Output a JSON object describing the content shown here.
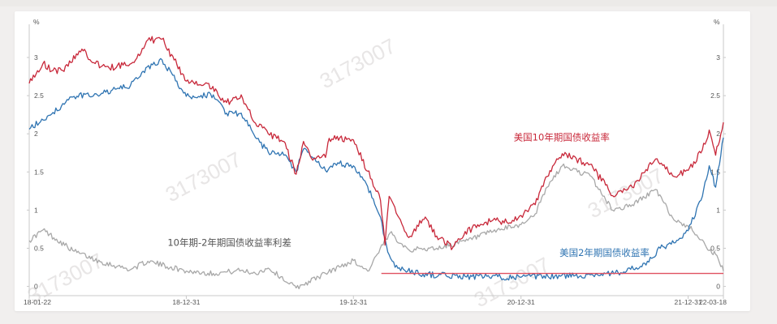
{
  "chart_data": {
    "type": "line",
    "title": "",
    "y_unit_left": "%",
    "y_unit_right": "%",
    "ylim": [
      -0.1,
      3.35
    ],
    "y_ticks": [
      0,
      0.5,
      1,
      1.5,
      2,
      2.5,
      3
    ],
    "y_tick_labels": [
      "0",
      "0.5",
      "1",
      "1.5",
      "2",
      "2.5",
      "3"
    ],
    "x_tick_labels": [
      "18-01-22",
      "18-12-31",
      "19-12-31",
      "20-12-31",
      "21-12-31",
      "22-03-18"
    ],
    "x_ticks": [
      "2018-01-22",
      "2018-12-31",
      "2019-12-31",
      "2020-12-31",
      "2021-12-31",
      "2022-03-18"
    ],
    "x_range": [
      "2018-01-22",
      "2022-03-18"
    ],
    "watermark": "3173007",
    "series": [
      {
        "name": "美国10年期国债收益率",
        "color": "#c8283a",
        "points": [
          [
            "2018-01-22",
            2.66
          ],
          [
            "2018-02-21",
            2.92
          ],
          [
            "2018-03-15",
            2.83
          ],
          [
            "2018-04-05",
            2.83
          ],
          [
            "2018-05-17",
            3.11
          ],
          [
            "2018-06-15",
            2.92
          ],
          [
            "2018-07-16",
            2.86
          ],
          [
            "2018-08-15",
            2.9
          ],
          [
            "2018-09-14",
            2.99
          ],
          [
            "2018-10-08",
            3.23
          ],
          [
            "2018-11-08",
            3.24
          ],
          [
            "2018-12-31",
            2.69
          ],
          [
            "2019-02-15",
            2.66
          ],
          [
            "2019-03-29",
            2.41
          ],
          [
            "2019-04-30",
            2.51
          ],
          [
            "2019-05-31",
            2.14
          ],
          [
            "2019-06-28",
            2.0
          ],
          [
            "2019-08-01",
            1.9
          ],
          [
            "2019-08-28",
            1.47
          ],
          [
            "2019-09-13",
            1.9
          ],
          [
            "2019-09-30",
            1.68
          ],
          [
            "2019-10-31",
            1.69
          ],
          [
            "2019-11-08",
            1.94
          ],
          [
            "2019-12-31",
            1.92
          ],
          [
            "2020-01-31",
            1.51
          ],
          [
            "2020-02-28",
            1.13
          ],
          [
            "2020-03-09",
            0.54
          ],
          [
            "2020-03-18",
            1.18
          ],
          [
            "2020-04-30",
            0.64
          ],
          [
            "2020-06-05",
            0.91
          ],
          [
            "2020-06-30",
            0.66
          ],
          [
            "2020-08-04",
            0.51
          ],
          [
            "2020-08-31",
            0.72
          ],
          [
            "2020-10-31",
            0.87
          ],
          [
            "2020-11-30",
            0.84
          ],
          [
            "2020-12-31",
            0.93
          ],
          [
            "2021-01-31",
            1.07
          ],
          [
            "2021-02-26",
            1.44
          ],
          [
            "2021-03-31",
            1.74
          ],
          [
            "2021-05-31",
            1.6
          ],
          [
            "2021-07-19",
            1.19
          ],
          [
            "2021-08-31",
            1.3
          ],
          [
            "2021-10-21",
            1.67
          ],
          [
            "2021-11-30",
            1.44
          ],
          [
            "2021-12-31",
            1.52
          ],
          [
            "2022-01-31",
            1.79
          ],
          [
            "2022-02-15",
            2.05
          ],
          [
            "2022-03-01",
            1.72
          ],
          [
            "2022-03-18",
            2.15
          ]
        ]
      },
      {
        "name": "美国2年期国债收益率",
        "color": "#2f74b2",
        "points": [
          [
            "2018-01-22",
            2.06
          ],
          [
            "2018-03-15",
            2.28
          ],
          [
            "2018-04-30",
            2.49
          ],
          [
            "2018-06-29",
            2.53
          ],
          [
            "2018-08-31",
            2.63
          ],
          [
            "2018-09-28",
            2.82
          ],
          [
            "2018-11-08",
            2.97
          ],
          [
            "2018-12-31",
            2.49
          ],
          [
            "2019-02-28",
            2.51
          ],
          [
            "2019-03-29",
            2.27
          ],
          [
            "2019-04-30",
            2.27
          ],
          [
            "2019-05-31",
            1.95
          ],
          [
            "2019-06-28",
            1.76
          ],
          [
            "2019-08-01",
            1.72
          ],
          [
            "2019-08-28",
            1.5
          ],
          [
            "2019-09-13",
            1.8
          ],
          [
            "2019-10-31",
            1.52
          ],
          [
            "2019-11-30",
            1.61
          ],
          [
            "2019-12-31",
            1.58
          ],
          [
            "2020-01-31",
            1.31
          ],
          [
            "2020-02-28",
            0.91
          ],
          [
            "2020-03-15",
            0.45
          ],
          [
            "2020-03-31",
            0.25
          ],
          [
            "2020-05-31",
            0.16
          ],
          [
            "2020-08-31",
            0.13
          ],
          [
            "2020-12-31",
            0.12
          ],
          [
            "2021-02-28",
            0.13
          ],
          [
            "2021-05-31",
            0.15
          ],
          [
            "2021-07-31",
            0.18
          ],
          [
            "2021-09-30",
            0.28
          ],
          [
            "2021-10-31",
            0.5
          ],
          [
            "2021-11-30",
            0.57
          ],
          [
            "2021-12-31",
            0.73
          ],
          [
            "2022-01-31",
            1.18
          ],
          [
            "2022-02-15",
            1.58
          ],
          [
            "2022-03-01",
            1.3
          ],
          [
            "2022-03-18",
            1.95
          ]
        ]
      },
      {
        "name": "10年期-2年期国债收益率利差",
        "color": "#a8a8a8",
        "points": [
          [
            "2018-01-22",
            0.6
          ],
          [
            "2018-02-21",
            0.74
          ],
          [
            "2018-04-30",
            0.46
          ],
          [
            "2018-06-29",
            0.32
          ],
          [
            "2018-08-31",
            0.22
          ],
          [
            "2018-10-08",
            0.33
          ],
          [
            "2018-12-31",
            0.2
          ],
          [
            "2019-02-28",
            0.17
          ],
          [
            "2019-04-30",
            0.21
          ],
          [
            "2019-05-31",
            0.17
          ],
          [
            "2019-06-28",
            0.24
          ],
          [
            "2019-08-28",
            -0.02
          ],
          [
            "2019-10-31",
            0.17
          ],
          [
            "2019-12-31",
            0.34
          ],
          [
            "2020-01-31",
            0.2
          ],
          [
            "2020-03-20",
            0.7
          ],
          [
            "2020-04-30",
            0.48
          ],
          [
            "2020-06-30",
            0.5
          ],
          [
            "2020-08-31",
            0.59
          ],
          [
            "2020-10-31",
            0.72
          ],
          [
            "2020-12-31",
            0.81
          ],
          [
            "2021-01-31",
            0.95
          ],
          [
            "2021-02-26",
            1.3
          ],
          [
            "2021-03-31",
            1.58
          ],
          [
            "2021-05-31",
            1.45
          ],
          [
            "2021-07-19",
            1.0
          ],
          [
            "2021-08-31",
            1.07
          ],
          [
            "2021-10-21",
            1.27
          ],
          [
            "2021-11-30",
            0.87
          ],
          [
            "2021-12-31",
            0.79
          ],
          [
            "2022-01-31",
            0.61
          ],
          [
            "2022-02-15",
            0.47
          ],
          [
            "2022-03-01",
            0.42
          ],
          [
            "2022-03-18",
            0.2
          ]
        ]
      }
    ],
    "reference_line": {
      "value": 0.17,
      "from": "2020-03-01",
      "to": "2022-03-18",
      "color": "#e05060"
    },
    "annotations": [
      {
        "text": "美国10年期国债收益率",
        "x": "2020-12-15",
        "y": 1.91,
        "color": "#c8283a"
      },
      {
        "text": "美国2年期国债收益率",
        "x": "2021-03-25",
        "y": 0.4,
        "color": "#2f74b2"
      },
      {
        "text": "10年期-2年期国债收益率利差",
        "x": "2018-11-20",
        "y": 0.53,
        "color": "#555555"
      }
    ]
  }
}
